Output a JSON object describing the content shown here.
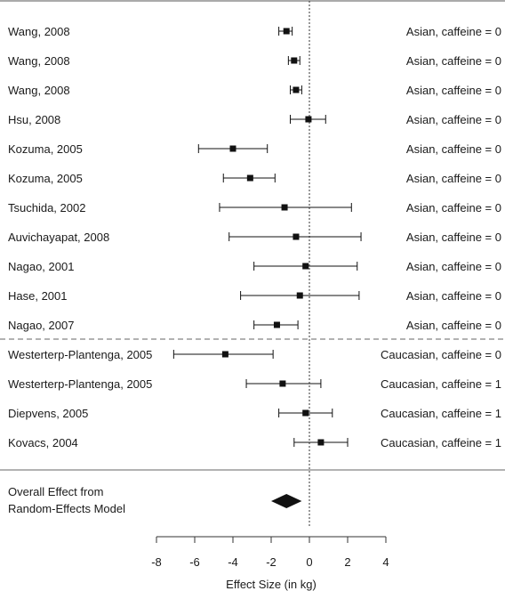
{
  "chart_data": {
    "type": "forest",
    "xlabel": "Effect Size (in kg)",
    "xlim": [
      -8,
      4
    ],
    "xticks": [
      -8,
      -6,
      -4,
      -2,
      0,
      2,
      4
    ],
    "reference_line": 0,
    "studies": [
      {
        "name": "Wang, 2008",
        "group": "Asian, caffeine = 0",
        "estimate": -1.2,
        "ci": [
          -1.6,
          -0.9
        ]
      },
      {
        "name": "Wang, 2008",
        "group": "Asian, caffeine = 0",
        "estimate": -0.8,
        "ci": [
          -1.1,
          -0.5
        ]
      },
      {
        "name": "Wang, 2008",
        "group": "Asian, caffeine = 0",
        "estimate": -0.7,
        "ci": [
          -1.0,
          -0.4
        ]
      },
      {
        "name": "Hsu, 2008",
        "group": "Asian, caffeine = 0",
        "estimate": -0.05,
        "ci": [
          -1.0,
          0.85
        ]
      },
      {
        "name": "Kozuma, 2005",
        "group": "Asian, caffeine = 0",
        "estimate": -4.0,
        "ci": [
          -5.8,
          -2.2
        ]
      },
      {
        "name": "Kozuma, 2005",
        "group": "Asian, caffeine = 0",
        "estimate": -3.1,
        "ci": [
          -4.5,
          -1.8
        ]
      },
      {
        "name": "Tsuchida, 2002",
        "group": "Asian, caffeine = 0",
        "estimate": -1.3,
        "ci": [
          -4.7,
          2.2
        ]
      },
      {
        "name": "Auvichayapat, 2008",
        "group": "Asian, caffeine = 0",
        "estimate": -0.7,
        "ci": [
          -4.2,
          2.7
        ]
      },
      {
        "name": "Nagao, 2001",
        "group": "Asian, caffeine = 0",
        "estimate": -0.2,
        "ci": [
          -2.9,
          2.5
        ]
      },
      {
        "name": "Hase, 2001",
        "group": "Asian, caffeine = 0",
        "estimate": -0.5,
        "ci": [
          -3.6,
          2.6
        ]
      },
      {
        "name": "Nagao, 2007",
        "group": "Asian, caffeine = 0",
        "estimate": -1.7,
        "ci": [
          -2.9,
          -0.6
        ]
      },
      {
        "name": "Westerterp-Plantenga, 2005",
        "group": "Caucasian, caffeine = 0",
        "estimate": -4.4,
        "ci": [
          -7.1,
          -1.9
        ]
      },
      {
        "name": "Westerterp-Plantenga, 2005",
        "group": "Caucasian, caffeine = 1",
        "estimate": -1.4,
        "ci": [
          -3.3,
          0.6
        ]
      },
      {
        "name": "Diepvens, 2005",
        "group": "Caucasian, caffeine = 1",
        "estimate": -0.2,
        "ci": [
          -1.6,
          1.2
        ]
      },
      {
        "name": "Kovacs, 2004",
        "group": "Caucasian, caffeine = 1",
        "estimate": 0.6,
        "ci": [
          -0.8,
          2.0
        ]
      }
    ],
    "overall": {
      "label_line1": "Overall Effect from",
      "label_line2": "Random-Effects Model",
      "estimate": -1.2,
      "ci": [
        -2.0,
        -0.4
      ]
    }
  }
}
